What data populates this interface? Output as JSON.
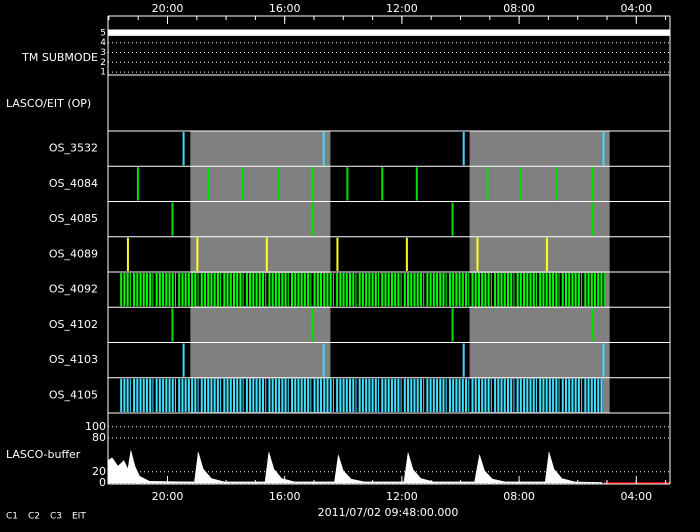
{
  "chart_data": {
    "type": "timeline",
    "xlim": [
      22.03,
      2.85
    ],
    "xticks": [
      {
        "value": 20,
        "label": "20:00"
      },
      {
        "value": 16,
        "label": "16:00"
      },
      {
        "value": 12,
        "label": "12:00"
      },
      {
        "value": 8,
        "label": "08:00"
      },
      {
        "value": 4,
        "label": "04:00"
      }
    ],
    "xminor": 1,
    "date_label": "2011/07/02 09:48:00.000",
    "shaded": [
      [
        19.22,
        14.44
      ],
      [
        9.69,
        4.91
      ]
    ],
    "shade_color": "#808080",
    "tm_submode": {
      "name": "TM SUBMODE",
      "ylim": [
        0.7,
        5.3
      ],
      "yticks": [
        5,
        4,
        3,
        2,
        1
      ],
      "x": [
        22.03,
        2.85
      ],
      "values": [
        5,
        5
      ],
      "color": "#ffffff"
    },
    "op_label": "LASCO/EIT (OP)",
    "rows": [
      {
        "name": "OS_3532",
        "color": "#40d8ff",
        "events": [
          19.45,
          14.67,
          9.89,
          5.12
        ]
      },
      {
        "name": "OS_4084",
        "color": "#00e000",
        "events": [
          21.01,
          18.61,
          17.45,
          16.23,
          15.05,
          13.86,
          12.67,
          11.49,
          9.08,
          7.93,
          6.71,
          5.49
        ]
      },
      {
        "name": "OS_4085",
        "color": "#00e000",
        "events": [
          19.83,
          15.05,
          10.27,
          5.49
        ]
      },
      {
        "name": "OS_4089",
        "color": "#ffff20",
        "events": [
          21.35,
          18.98,
          16.61,
          14.2,
          11.83,
          9.42,
          7.05
        ]
      },
      {
        "name": "OS_4092",
        "color": "#00ff00",
        "span": [
          21.58,
          5.08
        ],
        "cadence": 0.11
      },
      {
        "name": "OS_4102",
        "color": "#00e000",
        "events": [
          19.83,
          15.05,
          10.27,
          5.49
        ]
      },
      {
        "name": "OS_4103",
        "color": "#40d8ff",
        "events": [
          19.45,
          14.67,
          9.89,
          5.12
        ]
      },
      {
        "name": "OS_4105",
        "color": "#40e0ff",
        "span": [
          21.58,
          5.15
        ],
        "cadence": 0.11
      }
    ],
    "buffer": {
      "name": "LASCO-buffer",
      "color": "#ffffff",
      "ylim": [
        0,
        112
      ],
      "yticks": [
        100,
        80,
        20,
        0
      ],
      "x": [
        22.03,
        21.89,
        21.69,
        21.49,
        21.35,
        21.25,
        21.11,
        20.95,
        20.61,
        19.08,
        18.95,
        18.78,
        18.5,
        18.06,
        16.67,
        16.54,
        16.37,
        16.1,
        15.66,
        14.3,
        14.17,
        14.0,
        13.73,
        13.28,
        11.93,
        11.79,
        11.62,
        11.35,
        10.91,
        9.52,
        9.35,
        9.18,
        8.91,
        8.47,
        7.11,
        6.98,
        6.81,
        6.54,
        6.1,
        5.18,
        5.15
      ],
      "values": [
        40,
        45,
        30,
        40,
        25,
        58,
        30,
        12,
        3,
        2,
        55,
        25,
        8,
        2,
        2,
        55,
        25,
        8,
        2,
        2,
        50,
        22,
        7,
        2,
        2,
        54,
        24,
        8,
        2,
        2,
        50,
        22,
        7,
        2,
        2,
        55,
        25,
        8,
        2,
        1,
        0
      ],
      "missing": {
        "x": [
          5.08,
          2.85
        ],
        "color": "#e00000"
      }
    },
    "legend": [
      {
        "name": "C1",
        "color": "#ff2020"
      },
      {
        "name": "C2",
        "color": "#00ff00"
      },
      {
        "name": "C3",
        "color": "#ffffff"
      },
      {
        "name": "EIT",
        "color": "#ffffff"
      }
    ]
  }
}
